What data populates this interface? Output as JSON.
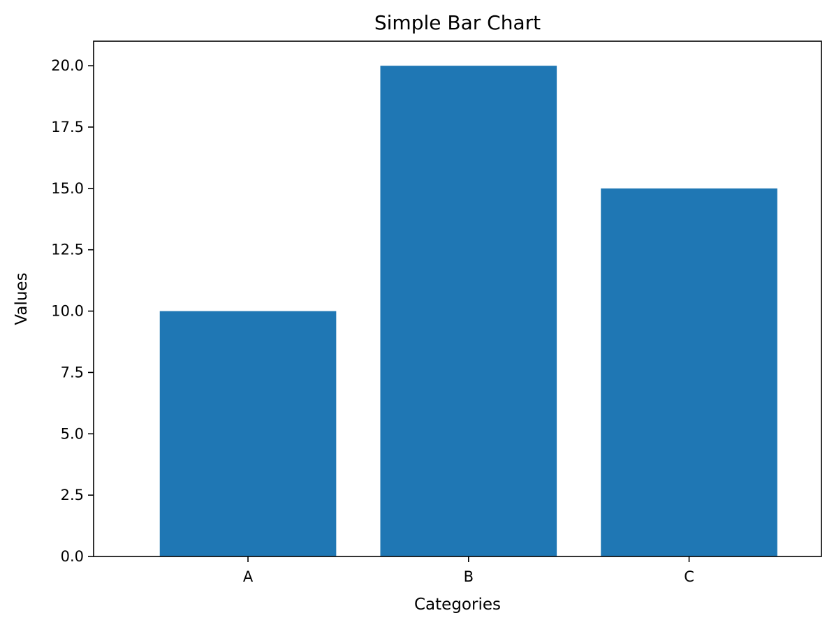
{
  "chart_data": {
    "type": "bar",
    "title": "Simple Bar Chart",
    "xlabel": "Categories",
    "ylabel": "Values",
    "categories": [
      "A",
      "B",
      "C"
    ],
    "values": [
      10,
      20,
      15
    ],
    "ylim": [
      0,
      21
    ],
    "yticks": [
      "0.0",
      "2.5",
      "5.0",
      "7.5",
      "10.0",
      "12.5",
      "15.0",
      "17.5",
      "20.0"
    ],
    "grid": false,
    "legend": "none",
    "bar_color": "#1f77b4"
  }
}
